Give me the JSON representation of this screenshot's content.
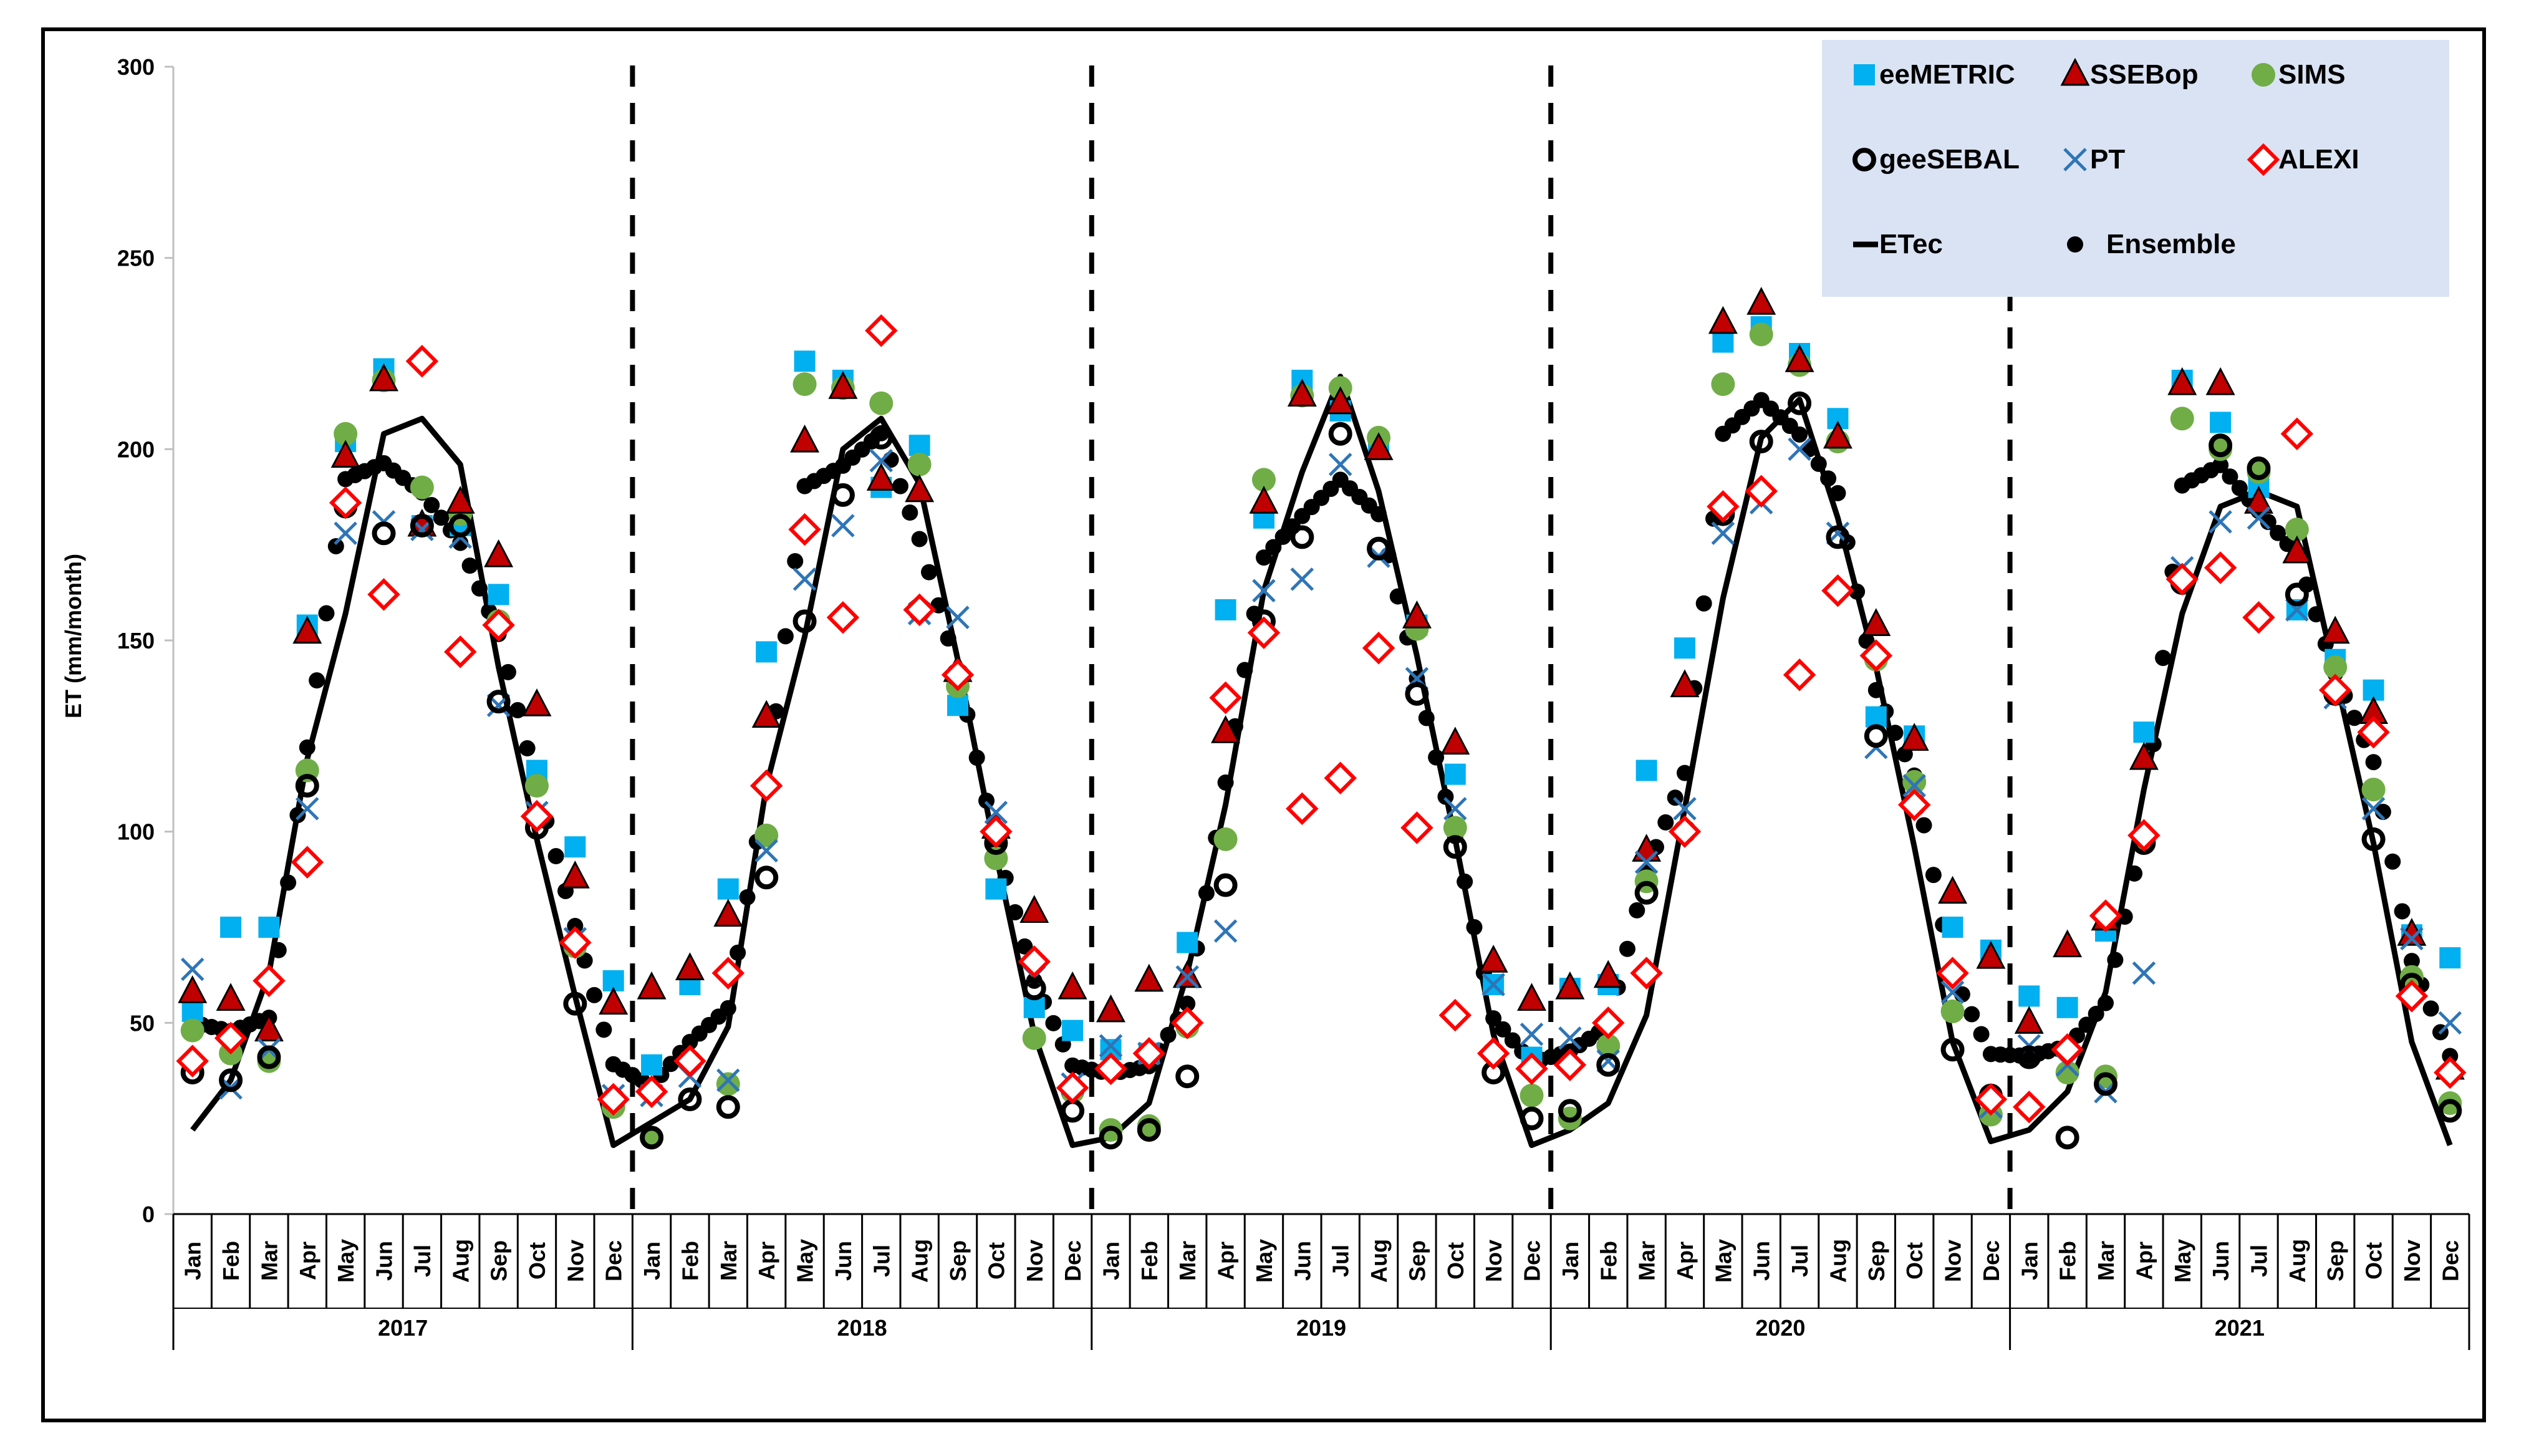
{
  "chart_data": {
    "type": "scatter",
    "title": "",
    "xlabel": "",
    "ylabel": "ET (mm/month)",
    "ylim": [
      0,
      300
    ],
    "yticks": [
      0,
      50,
      100,
      150,
      200,
      250,
      300
    ],
    "grid": false,
    "legend_position": "top-right",
    "months": [
      "Jan",
      "Feb",
      "Mar",
      "Apr",
      "May",
      "Jun",
      "Jul",
      "Aug",
      "Sep",
      "Oct",
      "Nov",
      "Dec"
    ],
    "years": [
      "2017",
      "2018",
      "2019",
      "2020",
      "2021"
    ],
    "series": [
      {
        "name": "eeMETRIC",
        "marker": "square",
        "color": "#00B0F0",
        "values": [
          53,
          75,
          75,
          154,
          202,
          221,
          180,
          180,
          162,
          116,
          96,
          61,
          39,
          60,
          85,
          147,
          223,
          218,
          190,
          201,
          133,
          85,
          54,
          48,
          43,
          42,
          71,
          158,
          182,
          218,
          210,
          201,
          154,
          115,
          60,
          41,
          59,
          60,
          116,
          148,
          228,
          232,
          225,
          208,
          130,
          125,
          75,
          69,
          57,
          54,
          74,
          126,
          218,
          207,
          190,
          158,
          145,
          137,
          73,
          67
        ]
      },
      {
        "name": "SSEBop",
        "marker": "triangle",
        "color": "#C00000",
        "values": [
          58,
          56,
          48,
          152,
          198,
          218,
          180,
          186,
          172,
          133,
          88,
          55,
          59,
          64,
          78,
          130,
          202,
          216,
          192,
          189,
          142,
          101,
          79,
          59,
          53,
          61,
          62,
          126,
          186,
          214,
          212,
          200,
          156,
          123,
          66,
          56,
          59,
          62,
          95,
          138,
          233,
          238,
          223,
          203,
          154,
          124,
          84,
          67,
          50,
          70,
          77,
          119,
          217,
          217,
          186,
          173,
          152,
          131,
          73,
          38
        ]
      },
      {
        "name": "SIMS",
        "marker": "circle",
        "color": "#70AD47",
        "values": [
          48,
          42,
          40,
          116,
          204,
          218,
          190,
          183,
          155,
          112,
          70,
          28,
          20,
          40,
          34,
          99,
          217,
          216,
          212,
          196,
          138,
          93,
          46,
          32,
          22,
          23,
          49,
          98,
          192,
          214,
          216,
          203,
          153,
          101,
          42,
          31,
          25,
          44,
          87,
          100,
          217,
          230,
          222,
          202,
          145,
          113,
          53,
          26,
          28,
          37,
          36,
          98,
          208,
          200,
          194,
          179,
          143,
          111,
          62,
          29
        ]
      },
      {
        "name": "geeSEBAL",
        "marker": "ring",
        "color": "#000000",
        "values": [
          37,
          35,
          41,
          112,
          185,
          178,
          180,
          180,
          134,
          101,
          55,
          30,
          20,
          30,
          28,
          88,
          155,
          188,
          203,
          158,
          141,
          97,
          59,
          27,
          20,
          22,
          36,
          86,
          155,
          177,
          204,
          174,
          136,
          96,
          37,
          25,
          27,
          39,
          84,
          100,
          183,
          202,
          212,
          177,
          125,
          107,
          43,
          31,
          41,
          20,
          34,
          97,
          165,
          201,
          195,
          162,
          136,
          98,
          60,
          27
        ]
      },
      {
        "name": "PT",
        "marker": "x",
        "color": "#2E75B6",
        "values": [
          64,
          33,
          43,
          106,
          178,
          181,
          179,
          177,
          133,
          105,
          72,
          31,
          31,
          36,
          35,
          95,
          166,
          180,
          197,
          157,
          156,
          105,
          62,
          34,
          44,
          42,
          62,
          74,
          163,
          166,
          196,
          172,
          140,
          106,
          60,
          47,
          46,
          40,
          92,
          106,
          178,
          186,
          200,
          178,
          122,
          112,
          58,
          28,
          44,
          39,
          32,
          63,
          169,
          181,
          182,
          158,
          135,
          106,
          72,
          50
        ]
      },
      {
        "name": "ALEXI",
        "marker": "diamond",
        "color": "#FF0000",
        "values": [
          40,
          46,
          61,
          92,
          186,
          162,
          223,
          147,
          154,
          104,
          71,
          30,
          32,
          40,
          63,
          112,
          179,
          156,
          231,
          158,
          141,
          100,
          66,
          33,
          38,
          42,
          50,
          135,
          152,
          106,
          114,
          148,
          101,
          52,
          42,
          38,
          39,
          50,
          63,
          100,
          185,
          189,
          141,
          163,
          146,
          107,
          63,
          30,
          28,
          43,
          78,
          99,
          166,
          169,
          156,
          204,
          137,
          126,
          57,
          37
        ]
      },
      {
        "name": "ETec",
        "marker": "line",
        "color": "#000000",
        "values": [
          22,
          35,
          63,
          119,
          157,
          204,
          208,
          196,
          143,
          98,
          57,
          18,
          24,
          30,
          49,
          112,
          151,
          200,
          208,
          191,
          145,
          94,
          47,
          18,
          20,
          29,
          63,
          107,
          163,
          194,
          219,
          189,
          146,
          98,
          47,
          18,
          22,
          29,
          52,
          106,
          161,
          203,
          213,
          182,
          143,
          96,
          45,
          19,
          22,
          32,
          58,
          111,
          157,
          185,
          189,
          185,
          141,
          97,
          45,
          18
        ]
      },
      {
        "name": "Ensemble",
        "marker": "dot",
        "color": "#000000",
        "values": [
          null,
          null,
          null,
          null,
          null,
          null,
          null,
          null,
          null,
          null,
          null,
          null,
          null,
          null,
          null,
          null,
          null,
          null,
          null,
          null,
          null,
          null,
          null,
          null,
          null,
          null,
          null,
          null,
          null,
          null,
          null,
          null,
          null,
          null,
          null,
          null,
          null,
          null,
          null,
          null,
          null,
          null,
          null,
          null,
          null,
          null,
          null,
          null,
          null,
          null,
          null,
          null,
          null,
          null,
          null,
          null,
          null,
          null,
          null,
          null
        ]
      }
    ]
  }
}
